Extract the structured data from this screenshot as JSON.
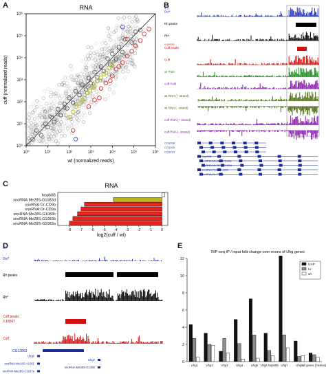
{
  "panels": {
    "A": {
      "letter": "A",
      "title": "RNA",
      "xlabel": "wt (normalized reads)",
      "ylabel": "cuff (normalized reads)",
      "ticks": [
        "10⁰",
        "10¹",
        "10²",
        "10³",
        "10⁴",
        "10⁵",
        "10⁶"
      ]
    },
    "B": {
      "letter": "B",
      "tracks": [
        {
          "label": "Dei*",
          "scale": "4.5",
          "color": "#1f2fbf",
          "kind": "peaks"
        },
        {
          "label": "Rh peaks",
          "scale": "",
          "color": "#000000",
          "kind": "bar"
        },
        {
          "label": "Rh*",
          "scale": "",
          "color": "#000000",
          "kind": "peaks"
        },
        {
          "label": "Cuff peaks",
          "scale": "0.89333",
          "color": "#d31010",
          "kind": "bar"
        },
        {
          "label": "Cuff",
          "scale": "",
          "color": "#d31010",
          "kind": "peaks"
        },
        {
          "label": "wt PolII",
          "scale": "",
          "color": "#1a8a1a",
          "kind": "peaks"
        },
        {
          "label": "cuff PolII",
          "scale": "",
          "color": "#8a1ab0",
          "kind": "peaks"
        },
        {
          "label": "wt RNA (+ strand)",
          "scale": "",
          "color": "#4a6a10",
          "kind": "peaks"
        },
        {
          "label": "wt RNA (- strand)",
          "scale": "",
          "color": "#4a6a10",
          "kind": "down"
        },
        {
          "label": "cuff RNA (+ strand)",
          "scale": "",
          "color": "#8a1ab0",
          "kind": "peaks"
        },
        {
          "label": "cuff RNA (- strand)",
          "scale": "",
          "color": "#8a1ab0",
          "kind": "down"
        }
      ],
      "genes": [
        "CG3208",
        "CG3209",
        "CG3210",
        "Nop60B",
        "snoRNA:Me28S-G1083c",
        "snoRNA:Me28S-G1083d",
        "snoRNA:Psi18S-1820",
        "snoRNA:Or-CD9a"
      ]
    },
    "C": {
      "letter": "C",
      "title": "RNA",
      "xlabel": "log2(cuff / wt)"
    },
    "D": {
      "letter": "D",
      "tracks": [
        {
          "label": "Dei*",
          "scale": "3.7",
          "color": "#1f2fbf"
        },
        {
          "label": "Rh peaks",
          "scale": "",
          "color": "#000000"
        },
        {
          "label": "Rh*",
          "scale": "",
          "color": "#000000"
        },
        {
          "label": "Cuff peaks",
          "scale": "3.18667",
          "color": "#d31010"
        },
        {
          "label": "Cuff",
          "scale": "",
          "color": "#d31010"
        }
      ],
      "genes": [
        "CG12863",
        "Uhg6",
        "Uhg7",
        "snoRNA:Me18S-A1061",
        "snoRNA:Me28S-G1366",
        "snoRNA:Me28S-C3227a",
        "snoRNA:Me28S-U1848",
        "snoRNA:Me18S-G1952",
        "snoRNA:Me28S-G2703a",
        "snoRNA:Me28S-G2703b",
        "snoRNA:Or-CD4"
      ]
    },
    "E": {
      "letter": "E",
      "title": "RIP-seq IP / input fold change over exons of Uhg genes",
      "legend": [
        "UAP",
        "Iu",
        "wt"
      ]
    }
  },
  "chart_data": [
    {
      "type": "scatter",
      "title": "RNA",
      "xlabel": "wt (normalized reads)",
      "ylabel": "cuff (normalized reads)",
      "xscale": "log",
      "yscale": "log",
      "xlim": [
        1,
        1000000
      ],
      "ylim": [
        1,
        1000000
      ],
      "series": [
        {
          "color": "#555555",
          "points": [
            [
              2,
              2
            ],
            [
              3,
              5
            ],
            [
              5,
              3
            ],
            [
              8,
              10
            ],
            [
              10,
              7
            ],
            [
              15,
              20
            ],
            [
              20,
              12
            ],
            [
              30,
              45
            ],
            [
              40,
              25
            ],
            [
              60,
              80
            ],
            [
              80,
              50
            ],
            [
              100,
              150
            ],
            [
              150,
              90
            ],
            [
              200,
              300
            ],
            [
              300,
              200
            ],
            [
              400,
              600
            ],
            [
              600,
              350
            ],
            [
              800,
              1200
            ],
            [
              1000,
              700
            ],
            [
              1500,
              2200
            ],
            [
              2000,
              1300
            ],
            [
              3000,
              4000
            ],
            [
              4000,
              2500
            ],
            [
              6000,
              9000
            ],
            [
              8000,
              5000
            ],
            [
              10000,
              15000
            ],
            [
              15000,
              9000
            ],
            [
              20000,
              30000
            ],
            [
              30000,
              18000
            ],
            [
              50000,
              70000
            ],
            [
              80000,
              50000
            ],
            [
              120000,
              150000
            ],
            [
              200000,
              180000
            ]
          ]
        },
        {
          "color": "#b5b515",
          "points": [
            [
              100,
              20
            ],
            [
              150,
              35
            ],
            [
              200,
              60
            ],
            [
              300,
              80
            ],
            [
              400,
              120
            ],
            [
              500,
              140
            ],
            [
              700,
              260
            ],
            [
              900,
              300
            ],
            [
              1200,
              450
            ],
            [
              1500,
              500
            ],
            [
              2000,
              900
            ],
            [
              3000,
              1200
            ],
            [
              4000,
              1800
            ],
            [
              5000,
              2100
            ],
            [
              7000,
              3500
            ],
            [
              10000,
              4500
            ]
          ]
        },
        {
          "color": "#d81b1b",
          "points": [
            [
              800,
              60
            ],
            [
              1500,
              120
            ],
            [
              2500,
              150
            ],
            [
              3000,
              400
            ],
            [
              5000,
              700
            ],
            [
              8000,
              900
            ],
            [
              10000,
              1500
            ],
            [
              15000,
              3000
            ],
            [
              20000,
              4000
            ],
            [
              30000,
              6000
            ],
            [
              50000,
              12000
            ],
            [
              80000,
              20000
            ],
            [
              120000,
              35000
            ],
            [
              200000,
              60000
            ],
            [
              300000,
              120000
            ],
            [
              500000,
              200000
            ],
            [
              40000,
              70000
            ],
            [
              150,
              5
            ]
          ]
        },
        {
          "color": "#2030c0",
          "points": [
            [
              30000,
              250000
            ],
            [
              200,
              2
            ]
          ]
        }
      ]
    },
    {
      "type": "bar",
      "title": "RNA",
      "xlabel": "log2(cuff / wt)",
      "xlim": [
        -9,
        0.5
      ],
      "xticks": [
        -8,
        -7,
        -6,
        -5,
        -4,
        -3,
        -2,
        -1,
        0,
        1
      ],
      "categories": [
        "Nop60B",
        "snoRNA:Me28S-G1083d",
        "snoRNA:Or-CD9b",
        "snoRNA:Or-CD9a",
        "snoRNA:Me28S-G1083c",
        "snoRNA:Me28S-G1083b",
        "snoRNA:Me28S-G1083a"
      ],
      "values": [
        0.25,
        -4.2,
        -6.7,
        -7.0,
        -7.3,
        -7.7,
        -8.0
      ],
      "colors": [
        "#f2f2f2",
        "#b8b61e",
        "#e8231d",
        "#e8231d",
        "#e8231d",
        "#e8231d",
        "#e8231d"
      ]
    },
    {
      "type": "bar",
      "title": "RIP-seq IP / input fold change over exons of Uhg genes",
      "categories": [
        "Uhg1",
        "Uhg2",
        "Uhg3",
        "Uhg4",
        "Uhg5",
        "Uhg6 Nop60B",
        "Uhg7",
        "Uhg8",
        "all genes (median)"
      ],
      "ylim": [
        0,
        12
      ],
      "yticks": [
        0,
        2,
        4,
        6,
        8,
        10,
        12
      ],
      "series": [
        {
          "name": "UAP",
          "color": "#111111",
          "values": [
            4.3,
            3.3,
            1.2,
            4.9,
            7.3,
            3.3,
            12.3,
            2.4,
            1.0
          ]
        },
        {
          "name": "Iu",
          "color": "#8c8c8c",
          "values": [
            2.7,
            2.0,
            2.7,
            2.1,
            3.1,
            1.3,
            3.1,
            0.6,
            0.8
          ]
        },
        {
          "name": "wt",
          "color": "#ffffff",
          "values": [
            0.5,
            1.9,
            1.0,
            0.3,
            0.4,
            0.7,
            1.6,
            0.7,
            0.5
          ]
        }
      ]
    }
  ]
}
